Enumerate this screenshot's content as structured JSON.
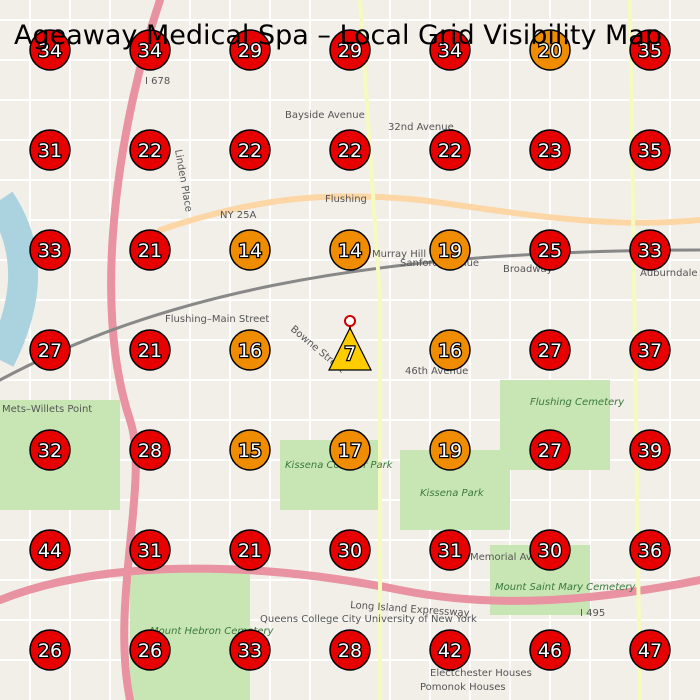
{
  "title": "Ageaway Medical Spa – Local Grid Visibility Map",
  "grid": [
    [
      {
        "rank": 34,
        "color": "#e60000"
      },
      {
        "rank": 34,
        "color": "#e60000"
      },
      {
        "rank": 29,
        "color": "#e60000"
      },
      {
        "rank": 29,
        "color": "#e60000"
      },
      {
        "rank": 34,
        "color": "#e60000"
      },
      {
        "rank": 20,
        "color": "#f08c00"
      },
      {
        "rank": 35,
        "color": "#e60000"
      }
    ],
    [
      {
        "rank": 31,
        "color": "#e60000"
      },
      {
        "rank": 22,
        "color": "#e60000"
      },
      {
        "rank": 22,
        "color": "#e60000"
      },
      {
        "rank": 22,
        "color": "#e60000"
      },
      {
        "rank": 22,
        "color": "#e60000"
      },
      {
        "rank": 23,
        "color": "#e60000"
      },
      {
        "rank": 35,
        "color": "#e60000"
      }
    ],
    [
      {
        "rank": 33,
        "color": "#e60000"
      },
      {
        "rank": 21,
        "color": "#e60000"
      },
      {
        "rank": 14,
        "color": "#f08c00"
      },
      {
        "rank": 14,
        "color": "#f08c00"
      },
      {
        "rank": 19,
        "color": "#f08c00"
      },
      {
        "rank": 25,
        "color": "#e60000"
      },
      {
        "rank": 33,
        "color": "#e60000"
      }
    ],
    [
      {
        "rank": 27,
        "color": "#e60000"
      },
      {
        "rank": 21,
        "color": "#e60000"
      },
      {
        "rank": 16,
        "color": "#f08c00"
      },
      null,
      {
        "rank": 16,
        "color": "#f08c00"
      },
      {
        "rank": 27,
        "color": "#e60000"
      },
      {
        "rank": 37,
        "color": "#e60000"
      }
    ],
    [
      {
        "rank": 32,
        "color": "#e60000"
      },
      {
        "rank": 28,
        "color": "#e60000"
      },
      {
        "rank": 15,
        "color": "#f08c00"
      },
      {
        "rank": 17,
        "color": "#f08c00"
      },
      {
        "rank": 19,
        "color": "#f08c00"
      },
      {
        "rank": 27,
        "color": "#e60000"
      },
      {
        "rank": 39,
        "color": "#e60000"
      }
    ],
    [
      {
        "rank": 44,
        "color": "#e60000"
      },
      {
        "rank": 31,
        "color": "#e60000"
      },
      {
        "rank": 21,
        "color": "#e60000"
      },
      {
        "rank": 30,
        "color": "#e60000"
      },
      {
        "rank": 31,
        "color": "#e60000"
      },
      {
        "rank": 30,
        "color": "#e60000"
      },
      {
        "rank": 36,
        "color": "#e60000"
      }
    ],
    [
      {
        "rank": 26,
        "color": "#e60000"
      },
      {
        "rank": 26,
        "color": "#e60000"
      },
      {
        "rank": 33,
        "color": "#e60000"
      },
      {
        "rank": 28,
        "color": "#e60000"
      },
      {
        "rank": 42,
        "color": "#e60000"
      },
      {
        "rank": 46,
        "color": "#e60000"
      },
      {
        "rank": 47,
        "color": "#e60000"
      }
    ]
  ],
  "center": {
    "rank": 7,
    "color": "#ffcc00"
  },
  "labels": [
    "Flushing",
    "Bayside Avenue",
    "32nd Avenue",
    "NY 25A",
    "I 678",
    "Flushing–Main Street",
    "Bowne Street",
    "46th Avenue",
    "Flushing Cemetery",
    "Kissena Corridor Park",
    "Kissena Park",
    "Long Island Expressway",
    "I 495",
    "Mount Hebron Cemetery",
    "Mount Saint Mary Cemetery",
    "Queens College City University of New York",
    "Pomonok Houses",
    "Electchester Houses",
    "Mets–Willets Point",
    "Broadway",
    "Auburndale",
    "Sanford Avenue",
    "Murray Hill",
    "Memorial Avenue",
    "Linden Place"
  ]
}
